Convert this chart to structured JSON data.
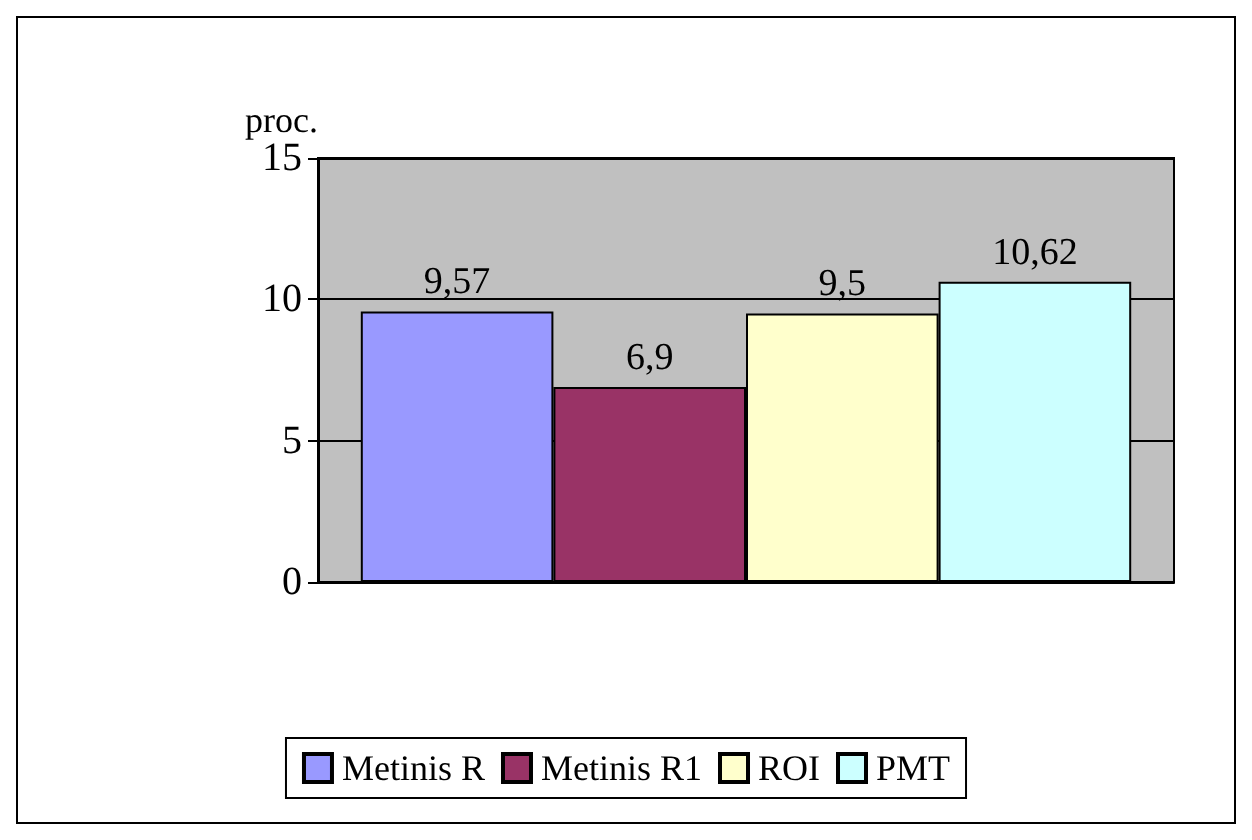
{
  "chart_data": {
    "type": "bar",
    "ylabel": "proc.",
    "categories": [
      null
    ],
    "series": [
      {
        "name": "Metinis R",
        "color": "#9999ff",
        "values": [
          9.57
        ],
        "value_labels": [
          "9,57"
        ]
      },
      {
        "name": "Metinis R1",
        "color": "#993366",
        "values": [
          6.9
        ],
        "value_labels": [
          "6,9"
        ]
      },
      {
        "name": "ROI",
        "color": "#ffffcc",
        "values": [
          9.5
        ],
        "value_labels": [
          "9,5"
        ]
      },
      {
        "name": "PMT",
        "color": "#ccffff",
        "values": [
          10.62
        ],
        "value_labels": [
          "10,62"
        ]
      }
    ],
    "ylim": [
      0,
      15
    ],
    "yticks": [
      0,
      5,
      10,
      15
    ],
    "grid": "y",
    "legend": "bottom"
  }
}
